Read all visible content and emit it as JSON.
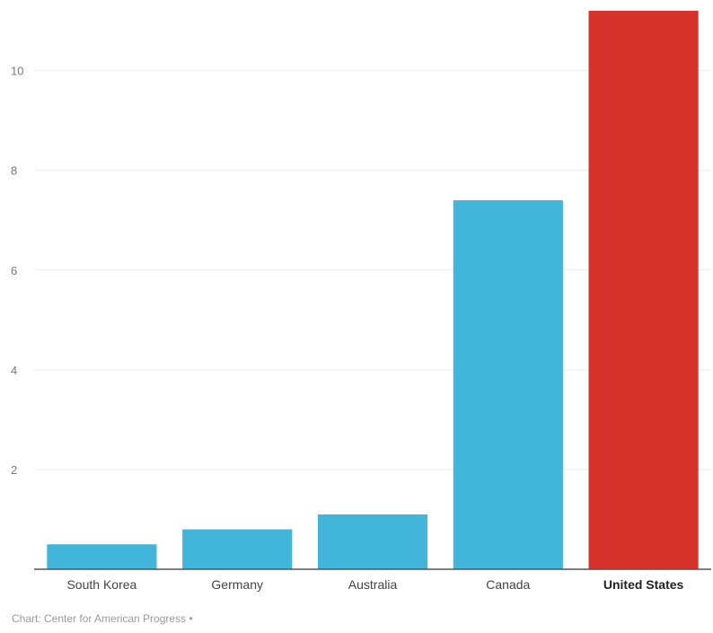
{
  "chart_data": {
    "type": "bar",
    "categories": [
      "South Korea",
      "Germany",
      "Australia",
      "Canada",
      "United States"
    ],
    "values": [
      0.5,
      0.8,
      1.1,
      7.4,
      11.2
    ],
    "ylim": [
      0,
      11.2
    ],
    "yticks": [
      2,
      4,
      6,
      8,
      10
    ],
    "grid": true,
    "colors": {
      "default_bar": "#41b6da",
      "highlight_bar": "#d7322b",
      "gridline": "#ececec",
      "axis": "#555555"
    },
    "highlight_category": "United States",
    "source": "Chart: Center for American Progress •"
  }
}
